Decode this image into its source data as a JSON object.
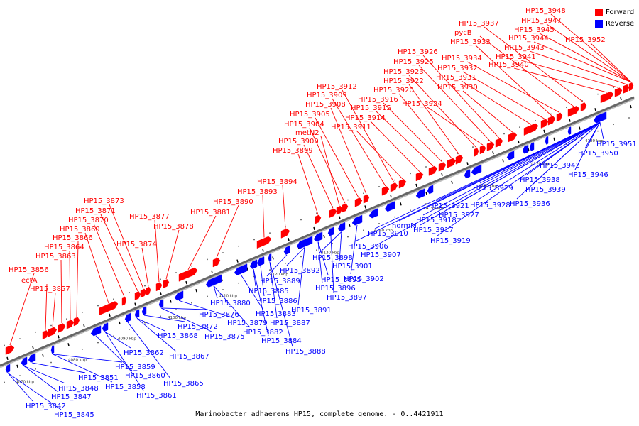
{
  "legend": {
    "forward_label": "Forward",
    "reverse_label": "Reverse",
    "forward_color": "#ff0000",
    "reverse_color": "#0000ff"
  },
  "caption": "Marinobacter adhaerens HP15, complete genome. - 0..4421911",
  "axis": {
    "ticks": [
      "4070 kbp",
      "4080 kbp",
      "4090 kbp",
      "4100 kbp",
      "4110 kbp",
      "4120 kbp",
      "4130 kbp",
      "4140 kbp",
      "4150 kbp",
      "4160 kbp",
      "4170 kbp",
      "4180 kbp"
    ]
  },
  "forward_genes": [
    "HP15_3856",
    "ectA",
    "HP15_3857",
    "HP15_3863",
    "HP15_3864",
    "HP15_3866",
    "HP15_3869",
    "HP15_3870",
    "HP15_3871",
    "HP15_3873",
    "HP15_3874",
    "HP15_3877",
    "HP15_3878",
    "HP15_3881",
    "HP15_3890",
    "HP15_3893",
    "HP15_3894",
    "HP15_3899",
    "HP15_3900",
    "metN2",
    "HP15_3904",
    "HP15_3905",
    "HP15_3908",
    "HP15_3909",
    "HP15_3912",
    "HP15_3911",
    "HP15_3914",
    "HP15_3915",
    "HP15_3916",
    "HP15_3920",
    "HP15_3922",
    "HP15_3923",
    "HP15_3924",
    "HP15_3925",
    "HP15_3926",
    "HP15_3930",
    "HP15_3931",
    "HP15_3932",
    "HP15_3933",
    "HP15_3934",
    "pycB",
    "HP15_3937",
    "HP15_3940",
    "HP15_3941",
    "HP15_3943",
    "HP15_3944",
    "HP15_3945",
    "HP15_3947",
    "HP15_3948",
    "HP15_3952"
  ],
  "reverse_genes": [
    "HP15_3842",
    "HP15_3845",
    "HP15_3847",
    "HP15_3848",
    "HP15_3851",
    "HP15_3858",
    "HP15_3859",
    "HP15_3860",
    "HP15_3861",
    "HP15_3862",
    "HP15_3865",
    "HP15_3867",
    "HP15_3868",
    "HP15_3872",
    "HP15_3875",
    "HP15_3876",
    "HP15_3879",
    "HP15_3880",
    "HP15_3882",
    "HP15_3883",
    "HP15_3884",
    "HP15_3885",
    "HP15_3886",
    "HP15_3887",
    "HP15_3888",
    "HP15_3889",
    "HP15_3891",
    "HP15_3892",
    "HP15_3895",
    "HP15_3896",
    "HP15_3897",
    "HP15_3898",
    "HP15_3901",
    "HP15_3902",
    "HP15_3906",
    "HP15_3907",
    "HP15_3910",
    "normM",
    "HP15_3917",
    "HP15_3918",
    "HP15_3919",
    "HP15_3921",
    "HP15_3927",
    "HP15_3928",
    "HP15_3929",
    "HP15_3936",
    "HP15_3938",
    "HP15_3939",
    "HP15_3942",
    "HP15_3946",
    "HP15_3950",
    "HP15_3951"
  ]
}
